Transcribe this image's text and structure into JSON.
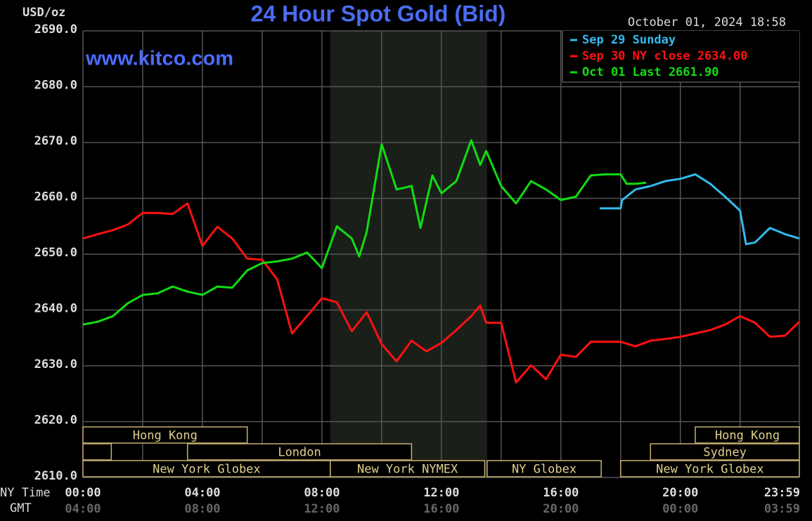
{
  "chart_data": {
    "type": "line",
    "title": "24 Hour Spot Gold (Bid)",
    "ylabel": "USD/oz",
    "date": "October 01, 2024 18:58",
    "watermark": "www.kitco.com",
    "xaxis_rows": [
      "NY Time",
      "GMT"
    ],
    "xlim": [
      0,
      23.983
    ],
    "ylim": [
      2610,
      2690
    ],
    "yticks": [
      {
        "value": 2610,
        "label": "2610.0"
      },
      {
        "value": 2620,
        "label": "2620.0"
      },
      {
        "value": 2630,
        "label": "2630.0"
      },
      {
        "value": 2640,
        "label": "2640.0"
      },
      {
        "value": 2650,
        "label": "2650.0"
      },
      {
        "value": 2660,
        "label": "2660.0"
      },
      {
        "value": 2670,
        "label": "2670.0"
      },
      {
        "value": 2680,
        "label": "2680.0"
      },
      {
        "value": 2690,
        "label": "2690.0"
      }
    ],
    "xticks": [
      {
        "value": 0,
        "label": "00:00"
      },
      {
        "value": 4,
        "label": "04:00"
      },
      {
        "value": 8,
        "label": "08:00"
      },
      {
        "value": 12,
        "label": "12:00"
      },
      {
        "value": 16,
        "label": "16:00"
      },
      {
        "value": 20,
        "label": "20:00"
      },
      {
        "value": 23.983,
        "label": "23:59"
      }
    ],
    "gmt_labels": [
      "04:00",
      "08:00",
      "12:00",
      "16:00",
      "20:00",
      "00:00",
      "03:59"
    ],
    "xgridlines": [
      0,
      2,
      4,
      6,
      8,
      10,
      12,
      14,
      16,
      18,
      20,
      22,
      23.983
    ],
    "grid": true,
    "shade": [
      8.28,
      13.53
    ],
    "sessions": [
      [
        {
          "name": "Hong Kong",
          "start": 0,
          "end": 5.5
        },
        {
          "name": "Hong Kong",
          "start": 20.5,
          "end": 23.983
        }
      ],
      [
        {
          "name": null,
          "start": 0,
          "end": 0.95
        },
        {
          "name": "London",
          "start": 3.5,
          "end": 11
        },
        {
          "name": "Sydney",
          "start": 19,
          "end": 23.983
        }
      ],
      [
        {
          "name": "New York Globex",
          "start": 0,
          "end": 8.28
        },
        {
          "name": "New York NYMEX",
          "start": 8.28,
          "end": 13.45
        },
        {
          "name": "NY Globex",
          "start": 13.53,
          "end": 17.35
        },
        {
          "name": "New York Globex",
          "start": 18,
          "end": 23.983
        }
      ]
    ],
    "series": [
      {
        "name": "Sep 29 Sunday",
        "color": "#33bbee",
        "x": [
          17.3,
          18.0,
          18.05,
          18.5,
          19,
          19.5,
          20,
          20.5,
          21,
          21.5,
          22,
          22.2,
          22.5,
          23,
          23.5,
          23.983
        ],
        "values": [
          2658.2,
          2658.2,
          2659.7,
          2661.6,
          2662.2,
          2663.1,
          2663.5,
          2664.3,
          2662.6,
          2660.3,
          2657.8,
          2651.8,
          2652.1,
          2654.7,
          2653.6,
          2652.8
        ]
      },
      {
        "name": "Sep 30 NY close 2634.00",
        "color": "#ff1111",
        "x": [
          0,
          0.5,
          1,
          1.5,
          2,
          2.5,
          3,
          3.5,
          4,
          4.5,
          5,
          5.5,
          6,
          6.5,
          7,
          7.5,
          8,
          8.5,
          9,
          9.5,
          10,
          10.5,
          11,
          11.5,
          12,
          12.5,
          13,
          13.3,
          13.5,
          14,
          14.5,
          15,
          15.5,
          16,
          16.5,
          17,
          17.5,
          18,
          18.5,
          19,
          19.5,
          20,
          20.5,
          21,
          21.5,
          22,
          22.5,
          23,
          23.5,
          23.983
        ],
        "values": [
          2652.8,
          2653.6,
          2654.3,
          2655.3,
          2657.4,
          2657.4,
          2657.2,
          2659.1,
          2651.5,
          2654.9,
          2652.8,
          2649.2,
          2649.0,
          2645.5,
          2635.8,
          2638.9,
          2642.1,
          2641.4,
          2636.2,
          2639.6,
          2633.9,
          2630.8,
          2634.5,
          2632.6,
          2634.1,
          2636.4,
          2638.9,
          2640.8,
          2637.7,
          2637.7,
          2627.0,
          2630.1,
          2627.6,
          2632.0,
          2631.6,
          2634.3,
          2634.3,
          2634.3,
          2633.5,
          2634.5,
          2634.8,
          2635.2,
          2635.8,
          2636.4,
          2637.4,
          2638.9,
          2637.7,
          2635.2,
          2635.4,
          2637.9
        ]
      },
      {
        "name": "Oct 01 Last 2661.90",
        "color": "#11dd11",
        "x": [
          0,
          0.5,
          1,
          1.5,
          2,
          2.5,
          3,
          3.5,
          4,
          4.5,
          5,
          5.5,
          6,
          6.5,
          7,
          7.5,
          8,
          8.5,
          9,
          9.25,
          9.5,
          10,
          10.5,
          11,
          11.3,
          11.7,
          12,
          12.5,
          13,
          13.3,
          13.5,
          14,
          14.5,
          15,
          15.5,
          16,
          16.5,
          17,
          17.5,
          18,
          18.2,
          18.5,
          18.85
        ],
        "values": [
          2637.4,
          2637.9,
          2638.9,
          2641.2,
          2642.7,
          2643.0,
          2644.2,
          2643.3,
          2642.7,
          2644.2,
          2644.0,
          2647.1,
          2648.4,
          2648.7,
          2649.2,
          2650.3,
          2647.5,
          2655.0,
          2652.8,
          2649.6,
          2654.0,
          2669.7,
          2661.6,
          2662.2,
          2654.7,
          2664.1,
          2660.9,
          2663.1,
          2670.4,
          2666.0,
          2668.5,
          2662.2,
          2659.1,
          2663.1,
          2661.6,
          2659.7,
          2660.3,
          2664.1,
          2664.3,
          2664.3,
          2662.6,
          2662.6,
          2662.8
        ]
      }
    ]
  }
}
